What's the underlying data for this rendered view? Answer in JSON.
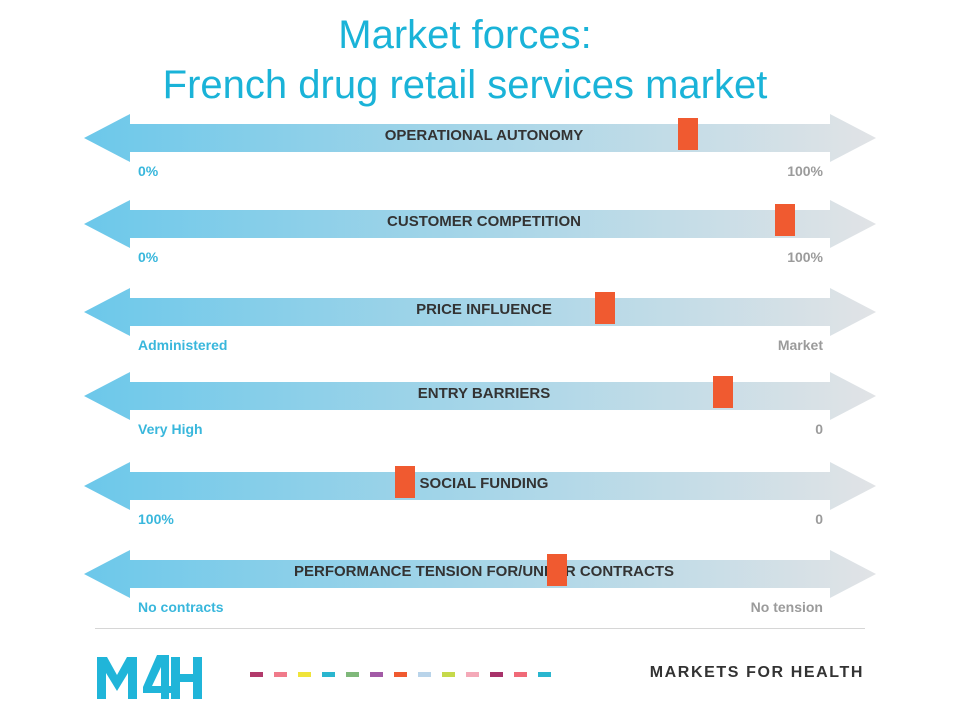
{
  "title": {
    "line1": "Market forces:",
    "line2": "French drug retail services market"
  },
  "colors": {
    "title": "#1ab3d8",
    "bar_left": "#6cc8ea",
    "bar_right": "#e1e3e6",
    "marker": "#f05a30",
    "end_label": "#39b7dc"
  },
  "sliders": [
    {
      "label": "OPERATIONAL AUTONOMY",
      "left": "0%",
      "right": "100%",
      "level": 0.78
    },
    {
      "label": "CUSTOMER COMPETITION",
      "left": "0%",
      "right": "100%",
      "level": 0.92
    },
    {
      "label": "PRICE INFLUENCE",
      "left": "Administered",
      "right": "Market",
      "level": 0.66
    },
    {
      "label": "ENTRY BARRIERS",
      "left": "Very High",
      "right": "0",
      "level": 0.83
    },
    {
      "label": "SOCIAL FUNDING",
      "left": "100%",
      "right": "0",
      "level": 0.37
    },
    {
      "label": "PERFORMANCE TENSION FOR/UNDER CONTRACTS",
      "left": "No contracts",
      "right": "No tension",
      "level": 0.59
    }
  ],
  "footer": {
    "logo_text": "M4H",
    "brand": "MARKETS FOR HEALTH",
    "dash_colors": [
      "#b23a6b",
      "#f07a8a",
      "#f0e43a",
      "#2ab6cf",
      "#7fb87a",
      "#a25aa6",
      "#f05a30",
      "#b9d4ea",
      "#c6d94a",
      "#f4a9b8",
      "#a8326a",
      "#f06a78",
      "#2ab6cf"
    ]
  }
}
